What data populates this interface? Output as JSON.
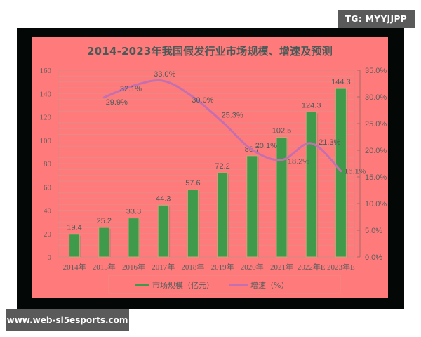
{
  "watermarks": {
    "top_right": "TG: MYYJJPP",
    "bottom_left": "www.web-sl5esports.com"
  },
  "colors": {
    "frame": "#030807",
    "panel": "#ff7b7b",
    "bar": "#3f9a4c",
    "line": "#c36fb0",
    "axis_text": "#5e5e5e",
    "title": "#4a5a58"
  },
  "chart_data": {
    "type": "bar",
    "title": "2014-2023年我国假发行业市场规模、增速及预测",
    "categories": [
      "2014年",
      "2015年",
      "2016年",
      "2017年",
      "2018年",
      "2019年",
      "2020年",
      "2021年",
      "2022年E",
      "2023年E"
    ],
    "series": [
      {
        "name": "市场规模（亿元）",
        "type": "bar",
        "axis": "left",
        "values": [
          19.4,
          25.2,
          33.3,
          44.3,
          57.6,
          72.2,
          86.7,
          102.5,
          124.3,
          144.3
        ],
        "labels": [
          "19.4",
          "25.2",
          "33.3",
          "44.3",
          "57.6",
          "72.2",
          "86.7",
          "102.5",
          "124.3",
          "144.3"
        ]
      },
      {
        "name": "增速（%）",
        "type": "line",
        "axis": "right",
        "values": [
          null,
          29.9,
          32.1,
          33.0,
          30.0,
          25.3,
          20.1,
          18.2,
          21.3,
          16.1
        ],
        "labels": [
          "",
          "29.9%",
          "32.1%",
          "33.0%",
          "30.0%",
          "25.3%",
          "20.1%",
          "18.2%",
          "21.3%",
          "16.1%"
        ]
      }
    ],
    "xlabel": "",
    "ylabel": "",
    "ylim": [
      0,
      160
    ],
    "y_ticks": [
      "0",
      "20",
      "40",
      "60",
      "80",
      "100",
      "120",
      "140",
      "160"
    ],
    "y2lim": [
      0,
      35
    ],
    "y2_ticks": [
      "0.0%",
      "5.0%",
      "10.0%",
      "15.0%",
      "20.0%",
      "25.0%",
      "30.0%",
      "35.0%"
    ],
    "grid": true,
    "legend": {
      "position": "bottom",
      "entries": [
        "市场规模（亿元）",
        "增速（%）"
      ]
    }
  }
}
